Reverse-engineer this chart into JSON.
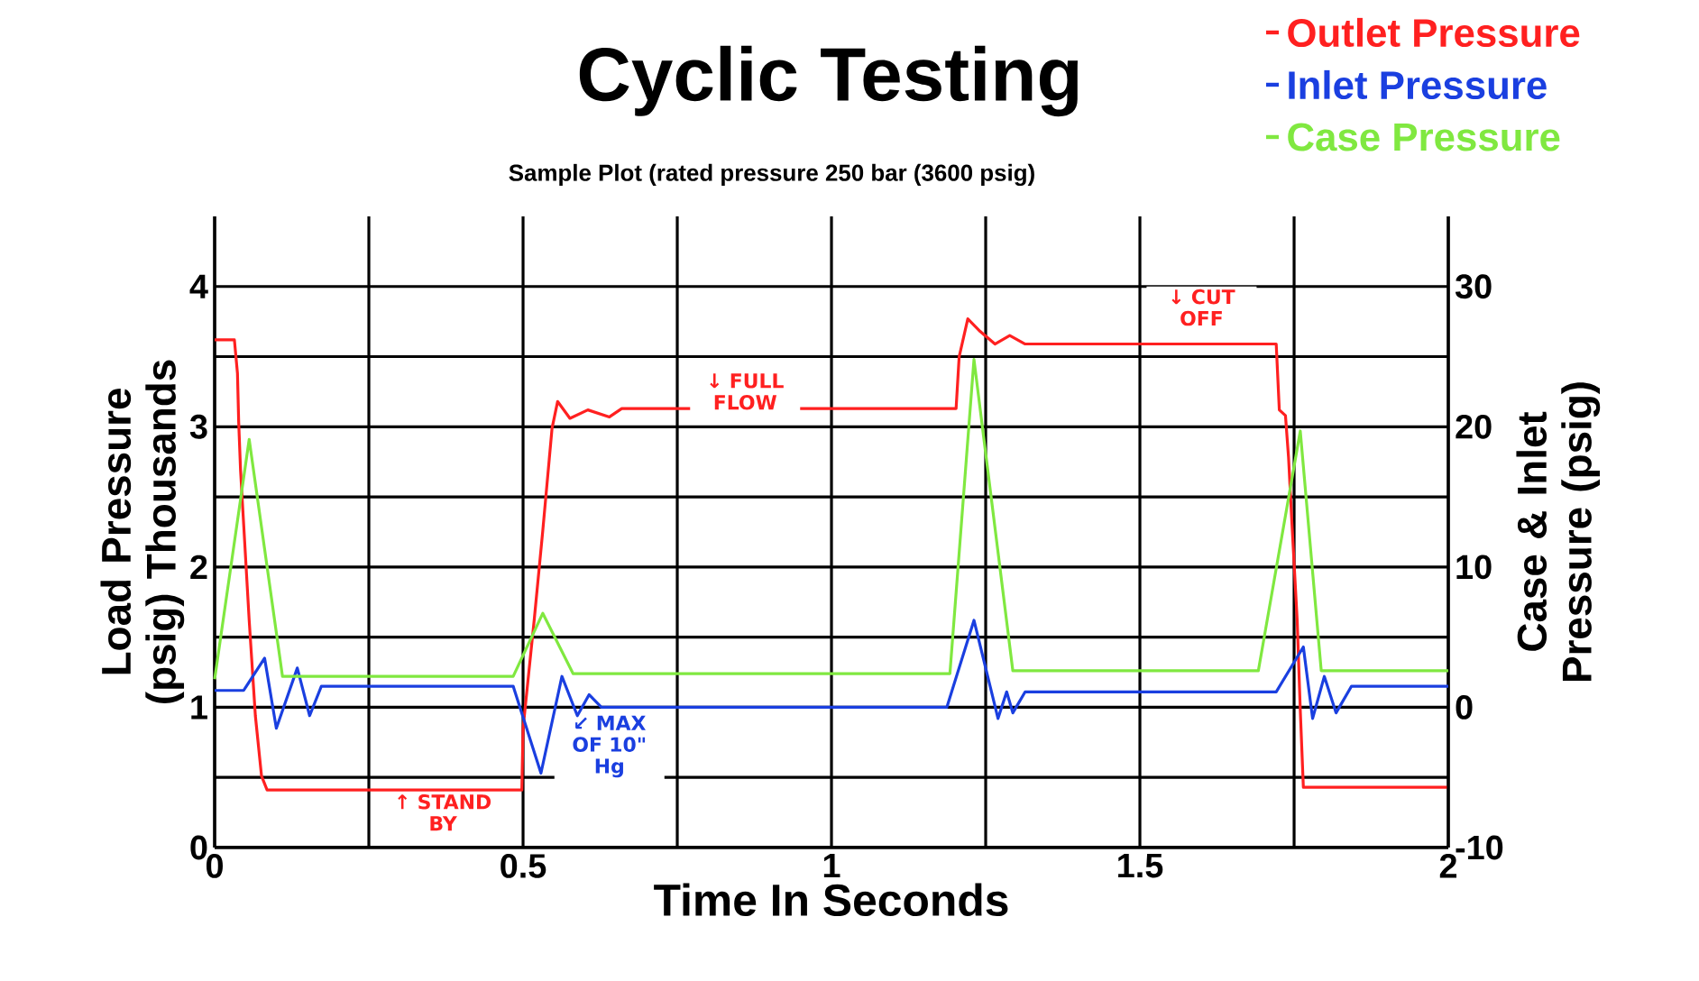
{
  "chart_data": {
    "type": "line",
    "title": "Cyclic Testing",
    "subtitle": "Sample Plot (rated pressure 250 bar (3600 psig)",
    "xlabel": "Time In Seconds",
    "ylabel": "Load Pressure (psig) Thousands",
    "y2label": "Case & Inlet Pressure (psig)",
    "xlim": [
      0,
      2
    ],
    "xticks": [
      0,
      {
        "value": 0.25,
        "label": null
      },
      0.5,
      {
        "value": 0.75,
        "label": null
      },
      1,
      {
        "value": 1.25,
        "label": null
      },
      1.5,
      {
        "value": 1.75,
        "label": null
      },
      2
    ],
    "ylim": [
      0,
      4.5
    ],
    "yticks": [
      0,
      {
        "value": 0.5,
        "label": null
      },
      1,
      {
        "value": 1.5,
        "label": null
      },
      2,
      {
        "value": 2.5,
        "label": null
      },
      3,
      {
        "value": 3.5,
        "label": null
      },
      4
    ],
    "y2lim": [
      -10,
      35
    ],
    "y2ticks": [
      -10,
      0,
      10,
      20,
      30
    ],
    "grid": true,
    "legend": "top right",
    "series": [
      {
        "name": "Outlet Pressure",
        "color": "#ff2020",
        "x": [
          0,
          0.032,
          0.037,
          0.039,
          0.042,
          0.056,
          0.066,
          0.076,
          0.085,
          0.498,
          0.5,
          0.518,
          0.532,
          0.547,
          0.556,
          0.576,
          0.605,
          0.64,
          0.66,
          1.202,
          1.207,
          1.221,
          1.241,
          1.265,
          1.289,
          1.314,
          1.721,
          1.726,
          1.736,
          1.741,
          1.746,
          1.755,
          1.76,
          1.765,
          2
        ],
        "values": [
          3.62,
          3.62,
          3.38,
          3.03,
          2.69,
          1.62,
          0.94,
          0.51,
          0.41,
          0.41,
          0.85,
          1.62,
          2.26,
          2.99,
          3.18,
          3.06,
          3.12,
          3.07,
          3.13,
          3.13,
          3.5,
          3.77,
          3.68,
          3.59,
          3.65,
          3.59,
          3.59,
          3.12,
          3.08,
          2.78,
          2.35,
          1.62,
          0.98,
          0.43,
          0.43
        ]
      },
      {
        "name": "Inlet Pressure",
        "color": "#1a3fe0",
        "axis": "y2",
        "x": [
          0,
          0.047,
          0.081,
          0.1,
          0.134,
          0.154,
          0.173,
          0.484,
          0.529,
          0.563,
          0.588,
          0.607,
          0.627,
          1.187,
          1.231,
          1.27,
          1.284,
          1.294,
          1.314,
          1.721,
          1.765,
          1.78,
          1.799,
          1.818,
          1.843,
          2
        ],
        "values": [
          1.2,
          1.2,
          3.5,
          -1.5,
          2.8,
          -0.6,
          1.5,
          1.5,
          -4.7,
          2.2,
          -0.6,
          0.9,
          0,
          0,
          6.2,
          -0.8,
          1.1,
          -0.4,
          1.1,
          1.1,
          4.3,
          -0.8,
          2.2,
          -0.4,
          1.5,
          1.5
        ]
      },
      {
        "name": "Case Pressure",
        "color": "#80e840",
        "axis": "y2",
        "x": [
          0,
          0.056,
          0.11,
          0.484,
          0.532,
          0.581,
          1.192,
          1.231,
          1.294,
          1.692,
          1.76,
          1.794,
          2
        ],
        "values": [
          2.0,
          19.1,
          2.2,
          2.2,
          6.7,
          2.4,
          2.4,
          24.8,
          2.6,
          2.6,
          19.7,
          2.6,
          2.6
        ]
      }
    ],
    "annotations": [
      "↑ STAND BY",
      "↓ FULL FLOW",
      "↙ MAX OF 10\" Hg",
      "↓ CUT OFF"
    ]
  }
}
